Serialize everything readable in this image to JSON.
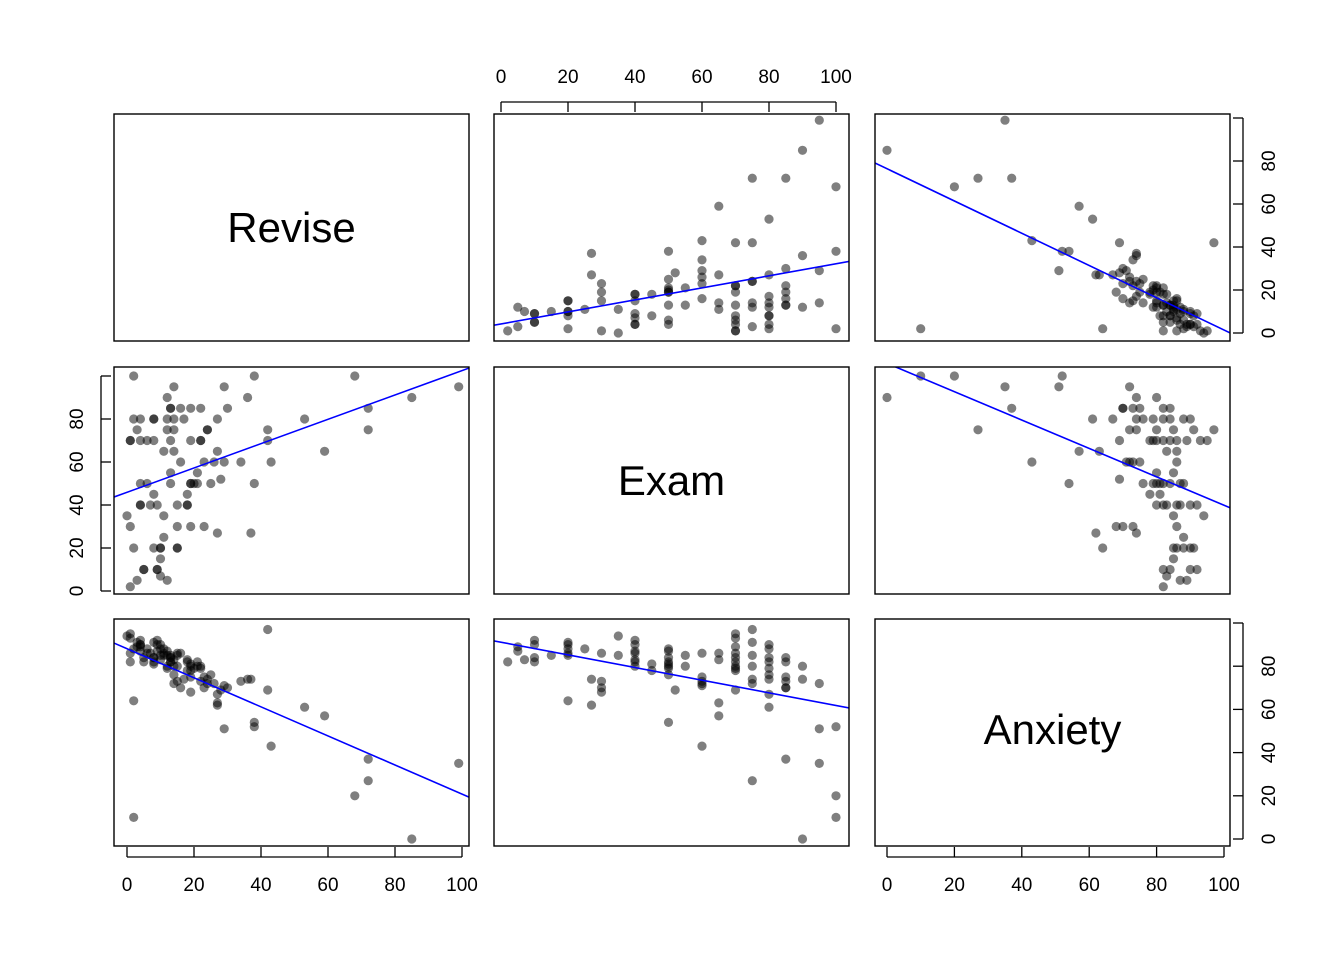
{
  "chart_data": {
    "type": "scatter",
    "subtype": "pairs-matrix",
    "title": "",
    "variables": [
      "Revise",
      "Exam",
      "Anxiety"
    ],
    "axis_ticks": [
      0,
      20,
      40,
      60,
      80,
      100
    ],
    "axis_ranges": {
      "Revise": [
        0,
        100
      ],
      "Exam": [
        0,
        100
      ],
      "Anxiety": [
        0,
        100
      ]
    },
    "grid": false,
    "point_color": "#000000",
    "point_alpha": 0.5,
    "line_color": "#0000ff",
    "regression_lines": [
      {
        "x": "Exam",
        "y": "Revise",
        "intercept": 4.2,
        "slope": 0.28
      },
      {
        "x": "Anxiety",
        "y": "Revise",
        "intercept": 76.4,
        "slope": -0.75
      },
      {
        "x": "Revise",
        "y": "Exam",
        "intercept": 45.9,
        "slope": 0.566
      },
      {
        "x": "Anxiety",
        "y": "Exam",
        "intercept": 105.9,
        "slope": -0.66
      },
      {
        "x": "Revise",
        "y": "Anxiety",
        "intercept": 88.1,
        "slope": -0.673
      },
      {
        "x": "Exam",
        "y": "Anxiety",
        "intercept": 91.1,
        "slope": -0.293
      }
    ],
    "observations_columns": [
      "Revise",
      "Exam",
      "Anxiety"
    ],
    "observations": [
      [
        2,
        100,
        10
      ],
      [
        38,
        100,
        52
      ],
      [
        68,
        100,
        20
      ],
      [
        14,
        95,
        72
      ],
      [
        29,
        95,
        51
      ],
      [
        99,
        95,
        35
      ],
      [
        12,
        90,
        80
      ],
      [
        36,
        90,
        74
      ],
      [
        85,
        90,
        0
      ],
      [
        13,
        85,
        82
      ],
      [
        13,
        85,
        84
      ],
      [
        16,
        85,
        70
      ],
      [
        19,
        85,
        75
      ],
      [
        22,
        85,
        73
      ],
      [
        30,
        85,
        70
      ],
      [
        72,
        85,
        37
      ],
      [
        2,
        80,
        88
      ],
      [
        4,
        80,
        90
      ],
      [
        8,
        80,
        82
      ],
      [
        8,
        80,
        84
      ],
      [
        12,
        80,
        79
      ],
      [
        14,
        80,
        76
      ],
      [
        17,
        80,
        74
      ],
      [
        27,
        80,
        67
      ],
      [
        53,
        80,
        61
      ],
      [
        3,
        75,
        91
      ],
      [
        12,
        75,
        85
      ],
      [
        14,
        75,
        80
      ],
      [
        24,
        75,
        74
      ],
      [
        24,
        75,
        72
      ],
      [
        42,
        75,
        97
      ],
      [
        72,
        75,
        27
      ],
      [
        1,
        70,
        93
      ],
      [
        1,
        70,
        95
      ],
      [
        4,
        70,
        89
      ],
      [
        6,
        70,
        86
      ],
      [
        8,
        70,
        84
      ],
      [
        13,
        70,
        82
      ],
      [
        19,
        70,
        78
      ],
      [
        22,
        70,
        80
      ],
      [
        22,
        70,
        79
      ],
      [
        42,
        70,
        69
      ],
      [
        11,
        65,
        86
      ],
      [
        14,
        65,
        83
      ],
      [
        27,
        65,
        63
      ],
      [
        59,
        65,
        57
      ],
      [
        16,
        60,
        86
      ],
      [
        23,
        60,
        75
      ],
      [
        26,
        60,
        72
      ],
      [
        29,
        60,
        71
      ],
      [
        34,
        60,
        73
      ],
      [
        43,
        60,
        43
      ],
      [
        13,
        55,
        85
      ],
      [
        21,
        55,
        80
      ],
      [
        28,
        52,
        69
      ],
      [
        4,
        50,
        87
      ],
      [
        6,
        50,
        88
      ],
      [
        13,
        50,
        84
      ],
      [
        19,
        50,
        80
      ],
      [
        19,
        50,
        81
      ],
      [
        20,
        50,
        79
      ],
      [
        21,
        50,
        82
      ],
      [
        25,
        50,
        76
      ],
      [
        38,
        50,
        54
      ],
      [
        8,
        45,
        81
      ],
      [
        18,
        45,
        78
      ],
      [
        4,
        40,
        92
      ],
      [
        4,
        40,
        90
      ],
      [
        7,
        40,
        86
      ],
      [
        9,
        40,
        87
      ],
      [
        15,
        40,
        80
      ],
      [
        18,
        40,
        83
      ],
      [
        18,
        40,
        82
      ],
      [
        0,
        35,
        94
      ],
      [
        11,
        35,
        85
      ],
      [
        1,
        30,
        86
      ],
      [
        15,
        30,
        73
      ],
      [
        19,
        30,
        68
      ],
      [
        23,
        30,
        70
      ],
      [
        27,
        27,
        62
      ],
      [
        37,
        27,
        74
      ],
      [
        11,
        25,
        88
      ],
      [
        2,
        20,
        64
      ],
      [
        8,
        20,
        91
      ],
      [
        10,
        20,
        90
      ],
      [
        10,
        20,
        88
      ],
      [
        15,
        20,
        86
      ],
      [
        15,
        20,
        85
      ],
      [
        10,
        15,
        85
      ],
      [
        5,
        10,
        84
      ],
      [
        5,
        10,
        82
      ],
      [
        9,
        10,
        92
      ],
      [
        9,
        10,
        90
      ],
      [
        3,
        5,
        89
      ],
      [
        10,
        7,
        83
      ],
      [
        12,
        5,
        87
      ],
      [
        1,
        2,
        82
      ]
    ]
  }
}
